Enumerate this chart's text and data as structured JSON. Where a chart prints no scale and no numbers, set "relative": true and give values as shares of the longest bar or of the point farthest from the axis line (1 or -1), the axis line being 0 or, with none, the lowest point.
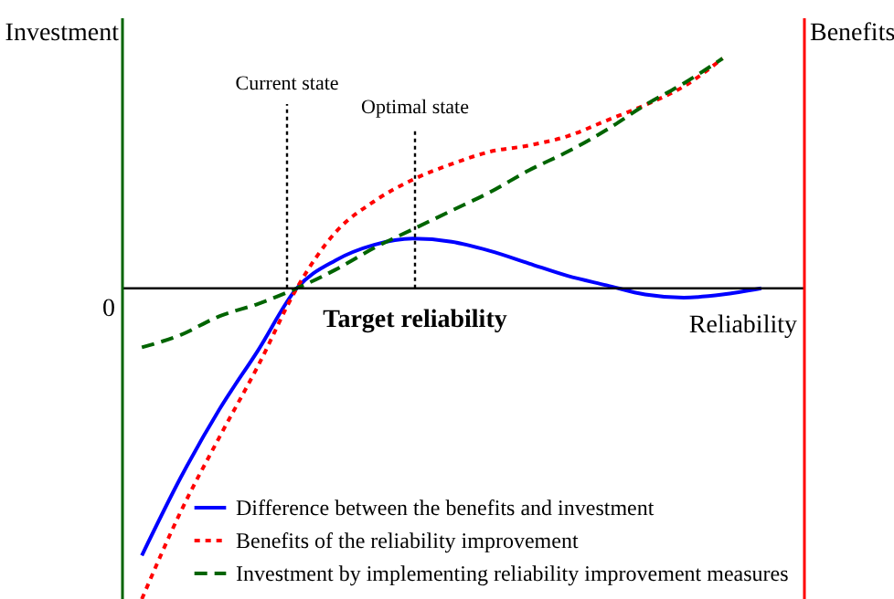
{
  "chart_data": {
    "type": "line",
    "relative": true,
    "xlabel": "Reliability",
    "ylabel": "Investment",
    "y2label": "Benefits",
    "categories": [
      null,
      null,
      null,
      null,
      null,
      null,
      null,
      null,
      null,
      null,
      null,
      null,
      null,
      null,
      null,
      null,
      null
    ],
    "series": [
      {
        "name": "Difference between the benefits and investment",
        "color": "#0000ff",
        "line_style": "solid",
        "values": [
          -0.86,
          -0.61,
          -0.39,
          -0.2,
          0,
          0.09,
          0.14,
          0.16,
          0.15,
          0.12,
          0.08,
          0.04,
          0.01,
          -0.02,
          -0.03,
          -0.02,
          0
        ]
      },
      {
        "name": "Benefits of the reliability improvement",
        "color": "#ff0000",
        "line_style": "dotted",
        "values": [
          -1,
          -0.72,
          -0.48,
          -0.25,
          0,
          0.18,
          0.28,
          0.35,
          0.4,
          0.44,
          0.46,
          0.49,
          0.54,
          0.59,
          0.65,
          0.74,
          null
        ]
      },
      {
        "name": "Investment by implementing reliability improvement measures",
        "color": "#006400",
        "line_style": "dashed",
        "values": [
          -0.19,
          -0.15,
          -0.09,
          -0.05,
          0,
          0.06,
          0.13,
          0.19,
          0.25,
          0.31,
          0.38,
          0.44,
          0.51,
          0.59,
          0.66,
          0.74,
          null
        ]
      }
    ],
    "annotations": [
      "Current state",
      "Optimal state",
      "Target reliability",
      "0"
    ],
    "legend": "bottom right"
  }
}
